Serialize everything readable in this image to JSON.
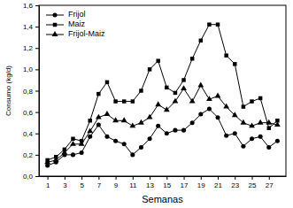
{
  "chart_data": {
    "type": "line",
    "x_label": "Semanas",
    "y_label": "Consumo (kg/d)",
    "x": [
      1,
      2,
      3,
      4,
      5,
      6,
      7,
      8,
      9,
      10,
      11,
      12,
      13,
      14,
      15,
      16,
      17,
      18,
      19,
      20,
      21,
      22,
      23,
      24,
      25,
      26,
      27,
      28
    ],
    "xlim": [
      0,
      29
    ],
    "xticks": [
      1,
      3,
      5,
      7,
      9,
      11,
      13,
      15,
      17,
      19,
      21,
      23,
      25,
      27
    ],
    "ylim": [
      0,
      1.6
    ],
    "yticks": [
      {
        "value": 0,
        "label": "0,0"
      },
      {
        "value": 0.2,
        "label": "0,2"
      },
      {
        "value": 0.4,
        "label": "0,4"
      },
      {
        "value": 0.6,
        "label": "0,6"
      },
      {
        "value": 0.8,
        "label": "0,8"
      },
      {
        "value": 1.0,
        "label": "1,0"
      },
      {
        "value": 1.2,
        "label": "1,2"
      },
      {
        "value": 1.4,
        "label": "1,4"
      },
      {
        "value": 1.6,
        "label": "1,6"
      }
    ],
    "grid": false,
    "legend": "top-left",
    "series": [
      {
        "name": "Frijol",
        "color": "#000000",
        "marker": "circle",
        "values": [
          0.1,
          0.13,
          0.2,
          0.2,
          0.22,
          0.37,
          0.48,
          0.37,
          0.33,
          0.3,
          0.2,
          0.27,
          0.35,
          0.47,
          0.4,
          0.43,
          0.43,
          0.5,
          0.58,
          0.63,
          0.55,
          0.38,
          0.4,
          0.28,
          0.35,
          0.37,
          0.27,
          0.33
        ]
      },
      {
        "name": "Maiz",
        "color": "#000000",
        "marker": "square",
        "values": [
          0.15,
          0.18,
          0.25,
          0.35,
          0.33,
          0.52,
          0.77,
          0.88,
          0.7,
          0.7,
          0.7,
          0.8,
          1.0,
          1.08,
          0.83,
          0.78,
          0.9,
          1.1,
          1.27,
          1.42,
          1.42,
          1.13,
          1.05,
          0.65,
          0.7,
          0.73,
          0.45,
          0.52
        ]
      },
      {
        "name": "Frijol-Maiz",
        "color": "#000000",
        "marker": "triangle",
        "values": [
          0.13,
          0.15,
          0.22,
          0.3,
          0.3,
          0.42,
          0.55,
          0.58,
          0.52,
          0.52,
          0.47,
          0.5,
          0.55,
          0.67,
          0.62,
          0.7,
          0.82,
          0.7,
          0.85,
          0.72,
          0.75,
          0.65,
          0.57,
          0.5,
          0.47,
          0.5,
          0.5,
          0.48
        ]
      }
    ]
  }
}
